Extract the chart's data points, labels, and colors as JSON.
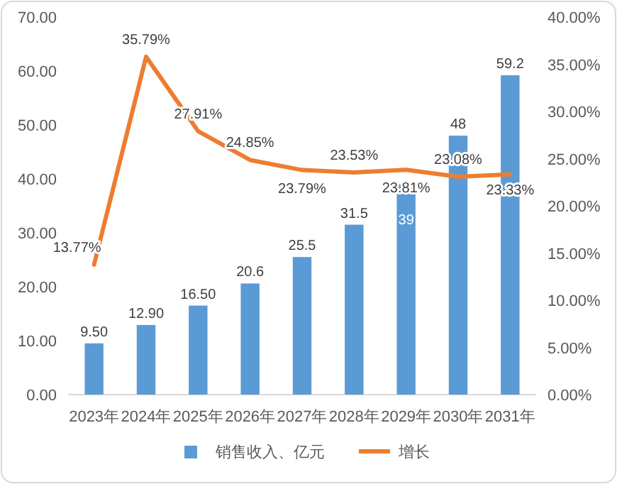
{
  "chart_data": {
    "type": "bar",
    "categories": [
      "2023年",
      "2024年",
      "2025年",
      "2026年",
      "2027年",
      "2028年",
      "2029年",
      "2030年",
      "2031年"
    ],
    "series": [
      {
        "name": "销售收入、亿元",
        "color": "#5b9bd5",
        "values": [
          9.5,
          12.9,
          16.5,
          20.6,
          25.5,
          31.5,
          39,
          48,
          59.2
        ],
        "value_labels": [
          "9.50",
          "12.90",
          "16.50",
          "20.6",
          "25.5",
          "31.5",
          "39",
          "48",
          "59.2"
        ]
      },
      {
        "name": "增长",
        "type": "line",
        "axis": "y2",
        "color": "#ed7d31",
        "values": [
          13.77,
          35.79,
          27.91,
          24.85,
          23.79,
          23.53,
          23.81,
          23.08,
          23.33
        ],
        "value_labels": [
          "13.77%",
          "35.79%",
          "27.91%",
          "24.85%",
          "23.79%",
          "23.53%",
          "23.81%",
          "23.08%",
          "23.33%"
        ]
      }
    ],
    "ylim": [
      0,
      70
    ],
    "yticks": [
      {
        "value": 0,
        "label": "0.00"
      },
      {
        "value": 10,
        "label": "10.00"
      },
      {
        "value": 20,
        "label": "20.00"
      },
      {
        "value": 30,
        "label": "30.00"
      },
      {
        "value": 40,
        "label": "40.00"
      },
      {
        "value": 50,
        "label": "50.00"
      },
      {
        "value": 60,
        "label": "60.00"
      },
      {
        "value": 70,
        "label": "70.00"
      }
    ],
    "y2lim": [
      0,
      40
    ],
    "y2ticks": [
      {
        "value": 0,
        "label": "0.00%"
      },
      {
        "value": 5,
        "label": "5.00%"
      },
      {
        "value": 10,
        "label": "10.00%"
      },
      {
        "value": 15,
        "label": "15.00%"
      },
      {
        "value": 20,
        "label": "20.00%"
      },
      {
        "value": 25,
        "label": "25.00%"
      },
      {
        "value": 30,
        "label": "30.00%"
      },
      {
        "value": 35,
        "label": "35.00%"
      },
      {
        "value": 40,
        "label": "40.00%"
      }
    ],
    "marker": "none",
    "line_style": "solid",
    "grid": false,
    "legend": "bottom"
  }
}
